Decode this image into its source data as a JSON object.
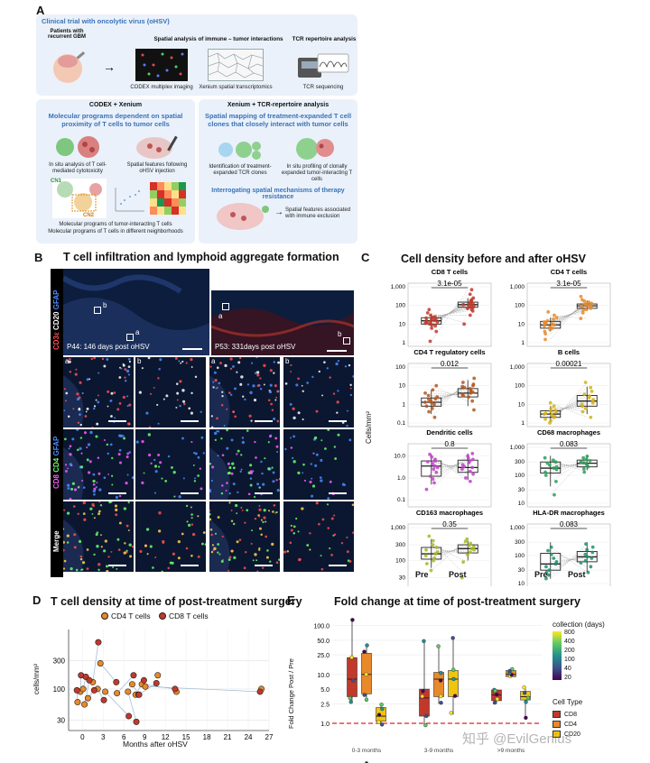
{
  "panel_a": {
    "letter": "A",
    "header": "Clinical trial with oncolytic virus (oHSV)",
    "patients": "Patients with recurrent GBM",
    "spatial_title": "Spatial analysis of immune – tumor interactions",
    "codex_img": "CODEX multiplex imaging",
    "xenium_img": "Xenium spatial transcriptomics",
    "tcr_title": "TCR repertoire analysis",
    "tcr_seq": "TCR sequencing",
    "left_box_title": "CODEX + Xenium",
    "left_blue": "Molecular programs dependent on spatial proximity of T cells to tumor cells",
    "insitu": "In situ analysis of T cell-mediated cytotoxicity",
    "spatial_feat": "Spatial features following oHSV injection",
    "cn1": "CN1",
    "cn2": "CN2",
    "mol1": "Molecular programs of tumor-interacting T cells",
    "mol2": "Molecular programs of T cells in different neighborhoods",
    "right_box_title": "Xenium + TCR-repertoire analysis",
    "right_blue": "Spatial mapping of treatment-expanded T cell clones that closely interact with tumor cells",
    "ident": "Identification of treatment-expanded TCR clones",
    "profiling": "In situ profiling of clonally expanded tumor-interacting T cells",
    "interrog": "Interrogating spatial mechanisms of therapy resistance",
    "spatial_excl": "Spatial features associated with immune exclusion"
  },
  "panel_b": {
    "letter": "B",
    "title": "T cell infiltration and lymphoid aggregate formation",
    "p44": "P44: 146 days post oHSV",
    "p53": "P53: 331days post oHSV",
    "row0_cd3": "CD3ε",
    "row0_cd20": "CD20",
    "row0_gfap": "GFAP",
    "row1_cd8": "CD8",
    "row1_cd4": "CD4",
    "row1_gfap": "GFAP",
    "row2": "Merge",
    "a": "a",
    "b": "b"
  },
  "panel_c": {
    "letter": "C",
    "title": "Cell density before and after oHSV",
    "ylabel": "Cells/mm²",
    "x_pre": "Pre",
    "x_post": "Post"
  },
  "panel_d": {
    "letter": "D",
    "title": "T cell density at time of post-treatment surgery",
    "legend_cd4": "CD4 T cells",
    "legend_cd8": "CD8 T cells",
    "ylabel": "cells/mm²",
    "xlabel": "Months after oHSV",
    "color_cd4": "#e8892a",
    "color_cd8": "#c0392b"
  },
  "panel_e": {
    "letter": "E",
    "title": "Fold change at time of post-treatment surgery",
    "ylabel": "Fold Change Post / Pre",
    "legend_title1": "collection (days)",
    "legend_title2": "Cell Type",
    "legend_cd8": "CD8",
    "legend_cd4": "CD4",
    "legend_cd20": "CD20",
    "watermark": "知乎 @EvilGenius",
    "color_cd8": "#c0392b",
    "color_cd4": "#e8892a",
    "color_cd20": "#f1c40f"
  },
  "chart_data": [
    {
      "type": "box",
      "panel": "C",
      "title": "CD8 T cells",
      "categories": [
        "Pre",
        "Post"
      ],
      "yscale": "log",
      "ticks": [
        "1",
        "10",
        "100",
        "1,000"
      ],
      "tick_values": [
        1,
        10,
        100,
        1000
      ],
      "ylim": [
        1,
        1000
      ],
      "pvalue": "3.1e-05",
      "color": "#c0392b",
      "box_pre": [
        7,
        10,
        15,
        22,
        35
      ],
      "box_post": [
        55,
        80,
        110,
        150,
        250
      ],
      "points_pre": [
        1.2,
        4,
        6,
        8,
        9,
        10,
        11,
        12,
        13,
        14,
        15,
        16,
        17,
        19,
        21,
        23,
        25,
        30,
        40,
        60
      ],
      "points_post": [
        10,
        30,
        50,
        60,
        70,
        75,
        80,
        90,
        100,
        110,
        120,
        130,
        140,
        160,
        180,
        200,
        250,
        400,
        700
      ]
    },
    {
      "type": "box",
      "panel": "C",
      "title": "CD4 T cells",
      "categories": [
        "Pre",
        "Post"
      ],
      "yscale": "log",
      "ticks": [
        "1",
        "10",
        "100",
        "1,000"
      ],
      "tick_values": [
        1,
        10,
        100,
        1000
      ],
      "ylim": [
        1,
        1000
      ],
      "pvalue": "3.1e-05",
      "color": "#e8892a",
      "box_pre": [
        4,
        6,
        9,
        14,
        22
      ],
      "box_post": [
        55,
        70,
        95,
        120,
        180
      ],
      "points_pre": [
        1.5,
        3,
        4,
        5,
        6,
        7,
        8,
        9,
        10,
        11,
        12,
        13,
        15,
        18,
        22,
        30,
        45
      ],
      "points_post": [
        20,
        40,
        55,
        60,
        70,
        80,
        90,
        95,
        100,
        110,
        120,
        130,
        150,
        170,
        200,
        300
      ]
    },
    {
      "type": "box",
      "panel": "C",
      "title": "CD4 T regulatory cells",
      "categories": [
        "Pre",
        "Post"
      ],
      "yscale": "log",
      "ticks": [
        "0.1",
        "1",
        "10",
        "100"
      ],
      "tick_values": [
        0.1,
        1,
        10,
        100
      ],
      "ylim": [
        0.1,
        100
      ],
      "pvalue": "0.012",
      "color": "#b5561b",
      "box_pre": [
        0.3,
        0.8,
        1.3,
        2.2,
        6
      ],
      "box_post": [
        0.8,
        2.5,
        4,
        7,
        20
      ],
      "points_pre": [
        0.2,
        0.4,
        0.6,
        0.8,
        1,
        1.2,
        1.3,
        1.5,
        1.8,
        2,
        2.5,
        3,
        4,
        6,
        10
      ],
      "points_post": [
        0.5,
        1.5,
        2.5,
        3,
        3.5,
        4,
        4.5,
        5,
        6,
        7,
        8,
        9,
        10,
        12,
        15,
        25
      ]
    },
    {
      "type": "box",
      "panel": "C",
      "title": "B cells",
      "categories": [
        "Pre",
        "Post"
      ],
      "yscale": "log",
      "ticks": [
        "1",
        "10",
        "100",
        "1,000"
      ],
      "tick_values": [
        1,
        10,
        100,
        1000
      ],
      "ylim": [
        1,
        1000
      ],
      "pvalue": "0.00021",
      "color": "#d4b21b",
      "box_pre": [
        1.2,
        2,
        3,
        4.5,
        8
      ],
      "box_post": [
        3,
        8,
        15,
        30,
        90
      ],
      "points_pre": [
        1,
        1.3,
        1.6,
        2,
        2.3,
        2.6,
        3,
        3.3,
        3.8,
        4.2,
        5,
        6,
        8,
        12
      ],
      "points_post": [
        2,
        4,
        6,
        8,
        10,
        12,
        15,
        18,
        22,
        28,
        35,
        50,
        80,
        150
      ]
    },
    {
      "type": "box",
      "panel": "C",
      "title": "Dendritic cells",
      "categories": [
        "Pre",
        "Post"
      ],
      "yscale": "log",
      "ticks": [
        "0.1",
        "1.0",
        "10.0"
      ],
      "tick_values": [
        0.1,
        1,
        10
      ],
      "ylim": [
        0.07,
        25
      ],
      "pvalue": "0.8",
      "color": "#c043c8",
      "box_pre": [
        0.5,
        1.2,
        3.5,
        6,
        12
      ],
      "box_post": [
        0.8,
        1.8,
        3,
        6.5,
        13
      ],
      "points_pre": [
        0.3,
        0.6,
        0.9,
        1.2,
        1.8,
        2.5,
        3,
        3.5,
        4.5,
        5.5,
        6,
        7,
        9,
        12
      ],
      "points_post": [
        0.7,
        1,
        1.5,
        2,
        2.5,
        3,
        3.3,
        4,
        5,
        6,
        7,
        8,
        10,
        13
      ]
    },
    {
      "type": "box",
      "panel": "C",
      "title": "CD68 macrophages",
      "categories": [
        "Pre",
        "Post"
      ],
      "yscale": "log",
      "ticks": [
        "10",
        "30",
        "100",
        "300",
        "1,000"
      ],
      "tick_values": [
        10,
        30,
        100,
        300,
        1000
      ],
      "ylim": [
        10,
        1000
      ],
      "pvalue": "0.083",
      "color": "#2e9e5b",
      "box_pre": [
        40,
        120,
        180,
        300,
        500
      ],
      "box_post": [
        150,
        200,
        270,
        350,
        500
      ],
      "points_pre": [
        20,
        60,
        100,
        130,
        160,
        180,
        200,
        230,
        270,
        300,
        350,
        420
      ],
      "points_post": [
        130,
        170,
        200,
        230,
        260,
        280,
        300,
        330,
        370,
        420,
        480
      ]
    },
    {
      "type": "box",
      "panel": "C",
      "title": "CD163 macrophages",
      "categories": [
        "Pre",
        "Post"
      ],
      "yscale": "log",
      "ticks": [
        "30",
        "100",
        "300",
        "1,000"
      ],
      "tick_values": [
        30,
        100,
        300,
        1000
      ],
      "ylim": [
        20,
        1000
      ],
      "pvalue": "0.35",
      "color": "#a7b823",
      "box_pre": [
        60,
        110,
        160,
        250,
        450
      ],
      "box_post": [
        100,
        170,
        230,
        300,
        400
      ],
      "points_pre": [
        50,
        80,
        100,
        120,
        140,
        160,
        180,
        210,
        250,
        300,
        400,
        550
      ],
      "points_post": [
        30,
        90,
        150,
        180,
        210,
        230,
        260,
        290,
        330,
        380,
        450
      ]
    },
    {
      "type": "box",
      "panel": "C",
      "title": "HLA-DR macrophages",
      "categories": [
        "Pre",
        "Post"
      ],
      "yscale": "log",
      "ticks": [
        "10",
        "30",
        "100",
        "300",
        "1,000"
      ],
      "tick_values": [
        10,
        30,
        100,
        300,
        1000
      ],
      "ylim": [
        10,
        1000
      ],
      "pvalue": "0.083",
      "color": "#1e8f6e",
      "box_pre": [
        15,
        30,
        50,
        120,
        300
      ],
      "box_post": [
        25,
        60,
        90,
        140,
        300
      ],
      "points_pre": [
        15,
        20,
        25,
        30,
        40,
        50,
        60,
        80,
        110,
        150,
        200
      ],
      "points_post": [
        25,
        40,
        55,
        65,
        80,
        90,
        110,
        130,
        160,
        200,
        260
      ]
    },
    {
      "type": "scatter",
      "panel": "D",
      "xlabel": "Months after oHSV",
      "ylabel": "cells/mm²",
      "yscale": "log",
      "x_ticks": [
        0,
        3,
        6,
        9,
        12,
        15,
        18,
        21,
        24,
        27
      ],
      "y_ticks": [
        30,
        100,
        300
      ],
      "xlim": [
        -2,
        27
      ],
      "ylim": [
        20,
        1000
      ],
      "series": [
        {
          "name": "CD4 T cells",
          "points": [
            [
              -0.7,
              60
            ],
            [
              -0.3,
              90
            ],
            [
              0.1,
              100
            ],
            [
              0.3,
              55
            ],
            [
              0.8,
              70
            ],
            [
              1.5,
              130
            ],
            [
              2.2,
              100
            ],
            [
              2.6,
              270
            ],
            [
              3.3,
              90
            ],
            [
              5,
              85
            ],
            [
              6.6,
              90
            ],
            [
              7.2,
              120
            ],
            [
              7.7,
              80
            ],
            [
              8.1,
              80
            ],
            [
              8.6,
              120
            ],
            [
              9.1,
              110
            ],
            [
              10.9,
              170
            ],
            [
              13.6,
              90
            ],
            [
              25.9,
              100
            ]
          ]
        },
        {
          "name": "CD8 T cells",
          "points": [
            [
              -0.8,
              95
            ],
            [
              -0.2,
              170
            ],
            [
              0.5,
              160
            ],
            [
              1,
              140
            ],
            [
              1.7,
              95
            ],
            [
              2.3,
              610
            ],
            [
              3.1,
              65
            ],
            [
              4.9,
              130
            ],
            [
              6.7,
              35
            ],
            [
              7.4,
              170
            ],
            [
              7.8,
              28
            ],
            [
              8.2,
              80
            ],
            [
              8.9,
              140
            ],
            [
              10.7,
              125
            ],
            [
              13.4,
              100
            ],
            [
              25.7,
              90
            ]
          ]
        }
      ]
    },
    {
      "type": "box",
      "panel": "E",
      "ylabel": "Fold Change Post / Pre",
      "yscale": "log",
      "y_ticks": [
        "1.0",
        "2.5",
        "5.0",
        "10.0",
        "25.0",
        "50.0",
        "100.0"
      ],
      "categories": [
        "0-3 months",
        "3-9 months",
        ">9 months"
      ],
      "reference_line": 1,
      "series": [
        {
          "name": "CD8",
          "boxes": [
            [
              2.8,
              3.5,
              8,
              22,
              130
            ],
            [
              0.9,
              1.4,
              3.3,
              5,
              50
            ],
            [
              2.5,
              2.9,
              3.8,
              4.8,
              5
            ]
          ]
        },
        {
          "name": "CD4",
          "boxes": [
            [
              3,
              4,
              10,
              27,
              40
            ],
            [
              2.5,
              3.5,
              8,
              11,
              40
            ],
            [
              8.5,
              9,
              10,
              12,
              13
            ]
          ]
        },
        {
          "name": "CD20",
          "boxes": [
            [
              0.9,
              1.1,
              1.4,
              2.1,
              2.5
            ],
            [
              1.5,
              3.5,
              8,
              12,
              60
            ],
            [
              1.4,
              3,
              3.5,
              4.5,
              5
            ]
          ]
        }
      ],
      "colorbar_ticks": [
        "800",
        "400",
        "200",
        "100",
        "40",
        "20"
      ]
    }
  ]
}
